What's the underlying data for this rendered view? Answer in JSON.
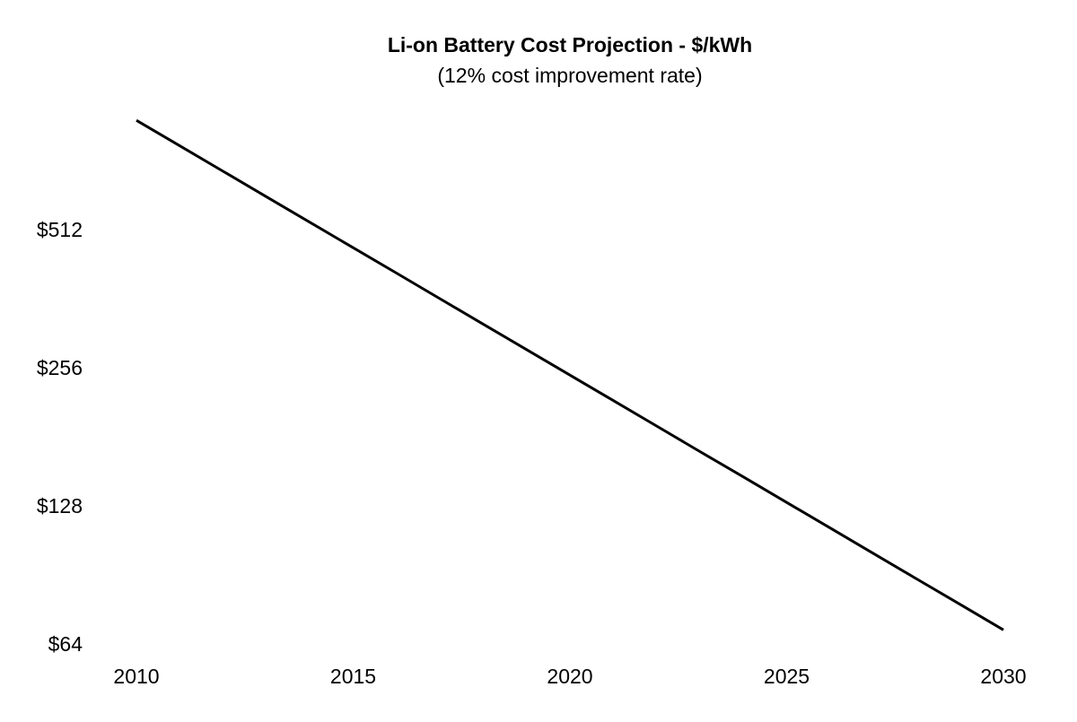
{
  "chart_data": {
    "type": "line",
    "title": "Li-on Battery Cost Projection - $/kWh",
    "subtitle": "(12% cost improvement rate)",
    "xlabel": "",
    "ylabel": "",
    "y_scale": "log2",
    "xlim": [
      2010,
      2030
    ],
    "ylim": [
      64,
      886
    ],
    "grid": false,
    "line_color": "#000000",
    "x_ticks": [
      2010,
      2015,
      2020,
      2025,
      2030
    ],
    "x_tick_labels": [
      "2010",
      "2015",
      "2020",
      "2025",
      "2030"
    ],
    "y_ticks": [
      64,
      128,
      256,
      512
    ],
    "y_tick_labels": [
      "$64",
      "$128",
      "$256",
      "$512"
    ],
    "series": [
      {
        "x": [
          2010,
          2011,
          2012,
          2013,
          2014,
          2015,
          2016,
          2017,
          2018,
          2019,
          2020,
          2021,
          2022,
          2023,
          2024,
          2025,
          2026,
          2027,
          2028,
          2029,
          2030
        ],
        "values": [
          886,
          779.7,
          686.1,
          603.8,
          531.3,
          467.6,
          411.5,
          362.1,
          318.6,
          280.4,
          246.7,
          217.1,
          191.1,
          168.1,
          148.0,
          130.2,
          114.6,
          100.8,
          88.7,
          78.1,
          68.7
        ]
      }
    ]
  }
}
